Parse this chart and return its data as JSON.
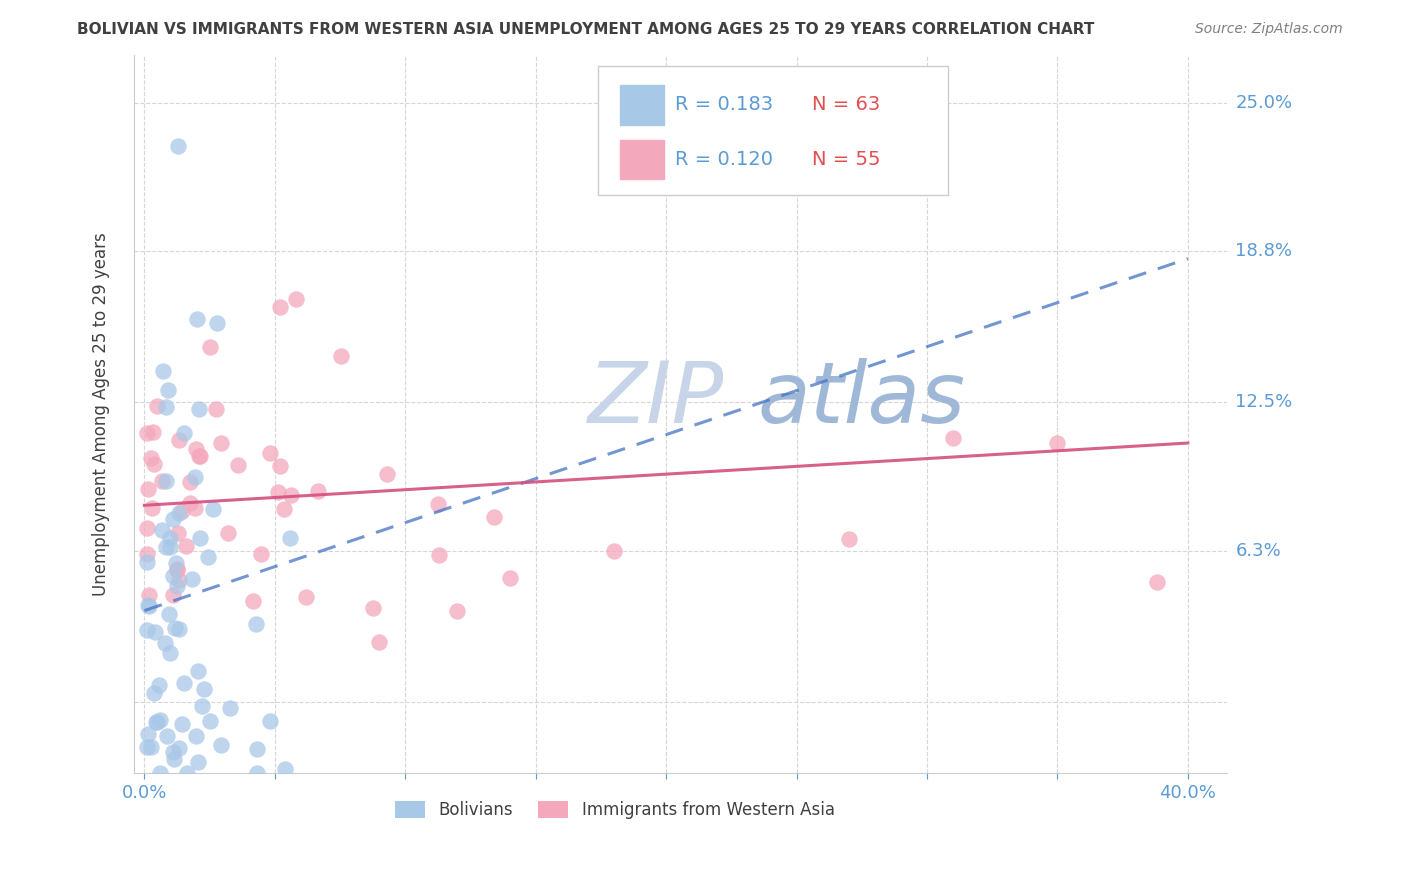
{
  "title": "BOLIVIAN VS IMMIGRANTS FROM WESTERN ASIA UNEMPLOYMENT AMONG AGES 25 TO 29 YEARS CORRELATION CHART",
  "source": "Source: ZipAtlas.com",
  "ylabel": "Unemployment Among Ages 25 to 29 years",
  "legend_bolivian_R": "0.183",
  "legend_bolivian_N": "63",
  "legend_western_R": "0.120",
  "legend_western_N": "55",
  "bolivian_color": "#A8C8E8",
  "western_color": "#F4A8BC",
  "trend_bolivian_color": "#4472C4",
  "trend_western_color": "#D45080",
  "watermark_zip": "ZIP",
  "watermark_atlas": "atlas",
  "watermark_zip_color": "#C8D4E8",
  "watermark_atlas_color": "#A0B8D8",
  "background_color": "#FFFFFF",
  "xlim": [
    0.0,
    0.4
  ],
  "ylim": [
    -0.03,
    0.27
  ],
  "ytick_values": [
    0.0,
    0.063,
    0.125,
    0.188,
    0.25
  ],
  "ytick_labels": [
    "",
    "6.3%",
    "12.5%",
    "18.8%",
    "25.0%"
  ],
  "grid_color": "#CCCCCC",
  "axis_label_color": "#5B9BD5",
  "title_color": "#404040",
  "source_color": "#808080",
  "trend_bol_x0": 0.0,
  "trend_bol_y0": 0.038,
  "trend_bol_x1": 0.4,
  "trend_bol_y1": 0.185,
  "trend_wes_x0": 0.0,
  "trend_wes_y0": 0.082,
  "trend_wes_x1": 0.4,
  "trend_wes_y1": 0.108
}
